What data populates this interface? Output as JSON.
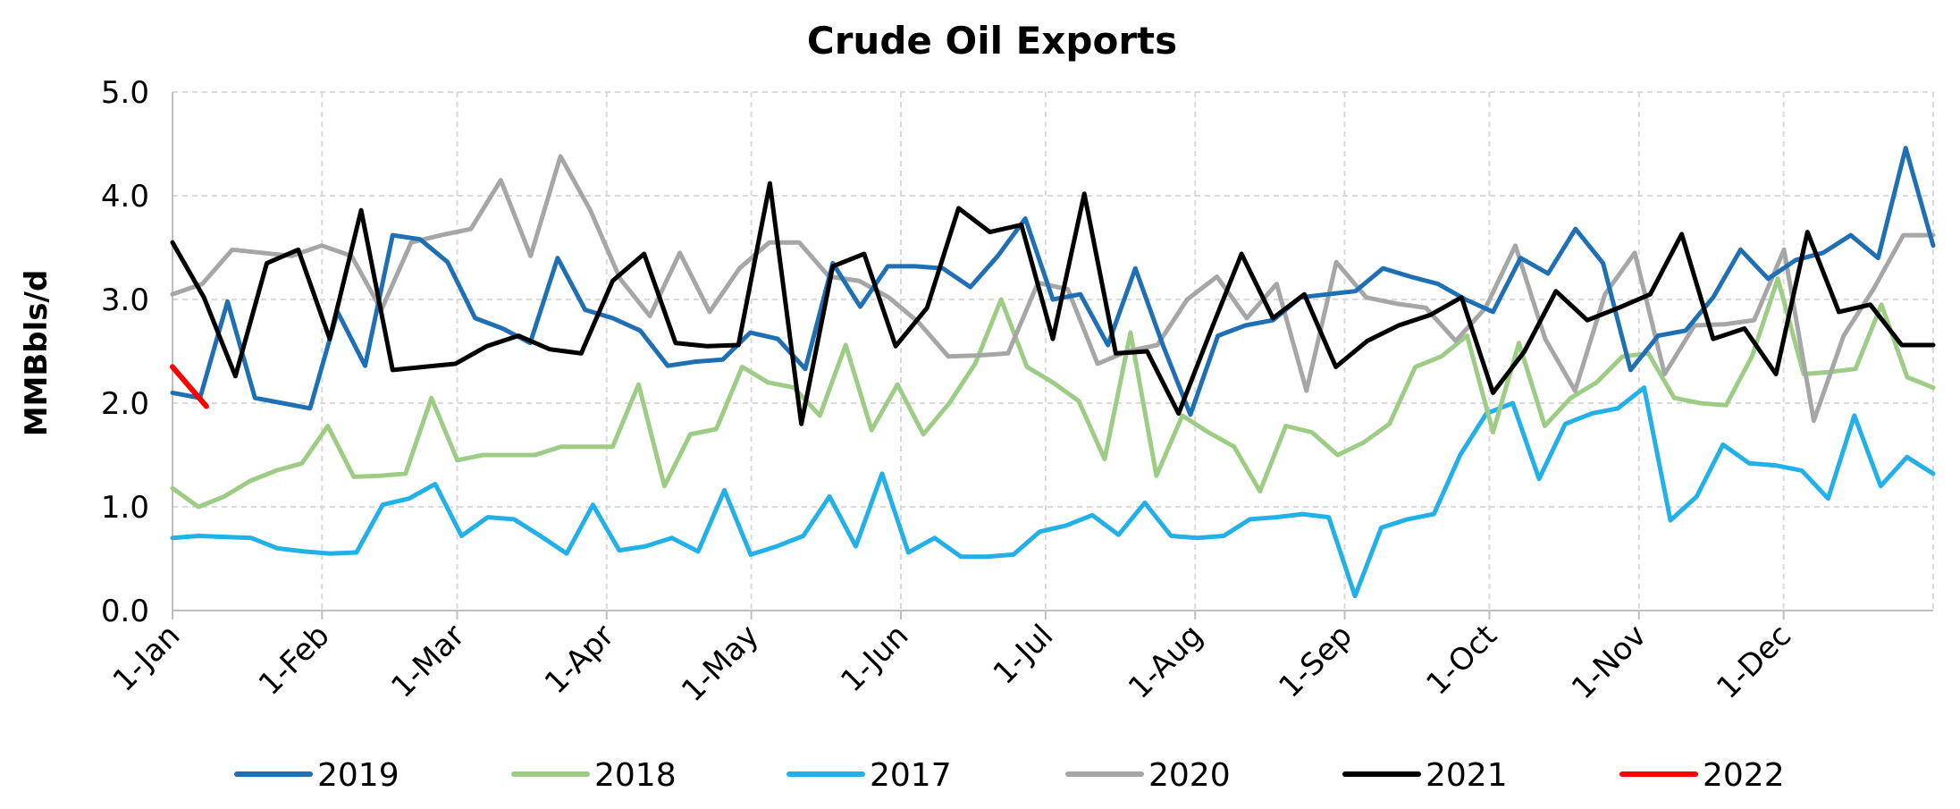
{
  "chart_data": {
    "type": "line",
    "title": "Crude Oil Exports",
    "ylabel": "MMBbls/d",
    "xlabel": "",
    "ylim": [
      0,
      5
    ],
    "yticks": [
      "0.0",
      "1.0",
      "2.0",
      "3.0",
      "4.0",
      "5.0"
    ],
    "x_unit": "week of year (52 weekly points, Jan 1 to Dec 31)",
    "months": [
      "1-Jan",
      "1-Feb",
      "1-Mar",
      "1-Apr",
      "1-May",
      "1-Jun",
      "1-Jul",
      "1-Aug",
      "1-Sep",
      "1-Oct",
      "1-Nov",
      "1-Dec"
    ],
    "grid": true,
    "legend_position": "bottom",
    "series": [
      {
        "name": "2019",
        "color": "#1f6fb5",
        "values": [
          2.1,
          2.05,
          2.98,
          2.05,
          2.0,
          1.95,
          2.88,
          2.36,
          3.62,
          3.58,
          3.36,
          2.82,
          2.72,
          2.58,
          3.4,
          2.9,
          2.82,
          2.7,
          2.36,
          2.4,
          2.42,
          2.68,
          2.62,
          2.33,
          3.35,
          2.93,
          3.32,
          3.32,
          3.3,
          3.12,
          3.42,
          3.78,
          3.0,
          3.05,
          2.56,
          3.3,
          2.56,
          1.89,
          2.65,
          2.75,
          2.8,
          3.02,
          3.05,
          3.08,
          3.3,
          3.22,
          3.15,
          3.0,
          2.88,
          3.4,
          3.25,
          3.68,
          3.35,
          2.32,
          2.65,
          2.7,
          3.02,
          3.48,
          3.2,
          3.38,
          3.45,
          3.62,
          3.4,
          4.46,
          3.52
        ]
      },
      {
        "name": "2018",
        "color": "#9dcc84",
        "values": [
          1.18,
          1.0,
          1.1,
          1.25,
          1.35,
          1.42,
          1.78,
          1.29,
          1.3,
          1.32,
          2.05,
          1.45,
          1.5,
          1.5,
          1.5,
          1.58,
          1.58,
          1.58,
          2.18,
          1.2,
          1.7,
          1.75,
          2.35,
          2.2,
          2.15,
          1.88,
          2.56,
          1.74,
          2.18,
          1.7,
          2.0,
          2.38,
          3.0,
          2.35,
          2.2,
          2.02,
          1.46,
          2.68,
          1.3,
          1.88,
          1.72,
          1.58,
          1.15,
          1.78,
          1.72,
          1.5,
          1.62,
          1.8,
          2.35,
          2.45,
          2.65,
          1.72,
          2.58,
          1.78,
          2.05,
          2.2,
          2.45,
          2.48,
          2.05,
          2.0,
          1.98,
          2.45,
          3.2,
          2.28,
          2.3,
          2.33,
          2.95,
          2.25,
          2.15
        ]
      },
      {
        "name": "2017",
        "color": "#22b0e8",
        "values": [
          0.7,
          0.72,
          0.71,
          0.7,
          0.6,
          0.57,
          0.55,
          0.56,
          1.02,
          1.08,
          1.22,
          0.72,
          0.9,
          0.88,
          0.72,
          0.55,
          1.02,
          0.58,
          0.62,
          0.7,
          0.57,
          1.16,
          0.54,
          0.62,
          0.72,
          1.1,
          0.62,
          1.32,
          0.56,
          0.7,
          0.52,
          0.52,
          0.54,
          0.76,
          0.82,
          0.92,
          0.73,
          1.04,
          0.72,
          0.7,
          0.72,
          0.88,
          0.9,
          0.93,
          0.9,
          0.14,
          0.8,
          0.88,
          0.93,
          1.5,
          1.9,
          2.0,
          1.27,
          1.8,
          1.9,
          1.95,
          2.15,
          0.87,
          1.1,
          1.6,
          1.42,
          1.4,
          1.35,
          1.08,
          1.88,
          1.2,
          1.48,
          1.32
        ]
      },
      {
        "name": "2020",
        "color": "#a6a6a6",
        "values": [
          3.05,
          3.15,
          3.48,
          3.45,
          3.42,
          3.52,
          3.42,
          2.9,
          3.55,
          3.62,
          3.68,
          4.15,
          3.42,
          4.38,
          3.86,
          3.2,
          2.84,
          3.45,
          2.88,
          3.3,
          3.55,
          3.55,
          3.22,
          3.18,
          3.02,
          2.78,
          2.45,
          2.46,
          2.48,
          3.16,
          3.1,
          2.38,
          2.5,
          2.56,
          3.0,
          3.22,
          2.82,
          3.15,
          2.12,
          3.36,
          3.02,
          2.96,
          2.92,
          2.6,
          2.92,
          3.52,
          2.62,
          2.12,
          3.05,
          3.45,
          2.28,
          2.75,
          2.76,
          2.8,
          3.48,
          1.83,
          2.65,
          3.1,
          3.62,
          3.62
        ]
      },
      {
        "name": "2021",
        "color": "#000000",
        "values": [
          3.55,
          3.02,
          2.26,
          3.35,
          3.48,
          2.62,
          3.86,
          2.32,
          2.35,
          2.38,
          2.55,
          2.65,
          2.52,
          2.48,
          3.18,
          3.44,
          2.58,
          2.55,
          2.56,
          4.12,
          1.8,
          3.32,
          3.44,
          2.55,
          2.92,
          3.88,
          3.65,
          3.72,
          2.62,
          4.02,
          2.48,
          2.5,
          1.9,
          2.68,
          3.44,
          2.82,
          3.05,
          2.35,
          2.6,
          2.75,
          2.85,
          3.02,
          2.1,
          2.5,
          3.08,
          2.8,
          2.92,
          3.05,
          3.63,
          2.62,
          2.72,
          2.28,
          3.65,
          2.88,
          2.95,
          2.56,
          2.56
        ]
      },
      {
        "name": "2022",
        "color": "#ff0000",
        "values": [
          2.35,
          1.97
        ]
      }
    ]
  }
}
